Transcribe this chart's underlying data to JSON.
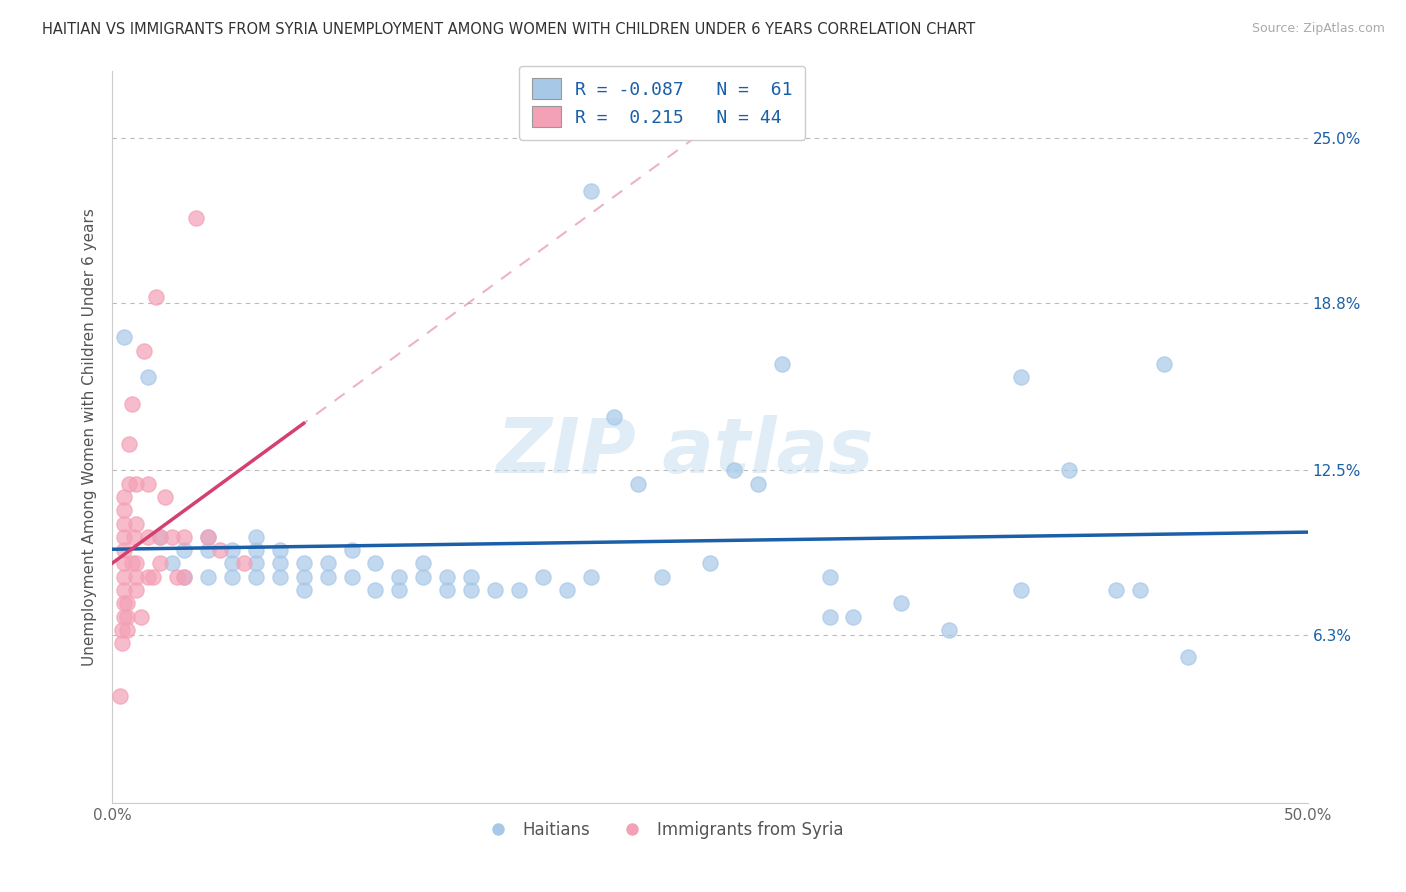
{
  "title": "HAITIAN VS IMMIGRANTS FROM SYRIA UNEMPLOYMENT AMONG WOMEN WITH CHILDREN UNDER 6 YEARS CORRELATION CHART",
  "source": "Source: ZipAtlas.com",
  "ylabel": "Unemployment Among Women with Children Under 6 years",
  "ytick_values": [
    0.063,
    0.125,
    0.188,
    0.25
  ],
  "ytick_labels": [
    "6.3%",
    "12.5%",
    "18.8%",
    "25.0%"
  ],
  "xmin": 0.0,
  "xmax": 0.5,
  "ymin": 0.0,
  "ymax": 0.275,
  "color_blue": "#a8c8e8",
  "color_pink": "#f4a0b5",
  "color_blue_line": "#1a5fa8",
  "color_pink_line": "#d44070",
  "background_color": "#ffffff",
  "blue_scatter_x": [
    0.005,
    0.015,
    0.02,
    0.025,
    0.03,
    0.03,
    0.04,
    0.04,
    0.04,
    0.05,
    0.05,
    0.05,
    0.06,
    0.06,
    0.06,
    0.06,
    0.07,
    0.07,
    0.07,
    0.08,
    0.08,
    0.08,
    0.09,
    0.09,
    0.1,
    0.1,
    0.11,
    0.11,
    0.12,
    0.12,
    0.13,
    0.13,
    0.14,
    0.14,
    0.15,
    0.15,
    0.16,
    0.17,
    0.18,
    0.19,
    0.2,
    0.21,
    0.22,
    0.23,
    0.25,
    0.26,
    0.27,
    0.28,
    0.3,
    0.31,
    0.33,
    0.35,
    0.38,
    0.4,
    0.42,
    0.43,
    0.44,
    0.45,
    0.38,
    0.3,
    0.2
  ],
  "blue_scatter_y": [
    0.175,
    0.16,
    0.1,
    0.09,
    0.085,
    0.095,
    0.085,
    0.1,
    0.095,
    0.09,
    0.085,
    0.095,
    0.085,
    0.095,
    0.09,
    0.1,
    0.09,
    0.085,
    0.095,
    0.08,
    0.09,
    0.085,
    0.085,
    0.09,
    0.085,
    0.095,
    0.08,
    0.09,
    0.08,
    0.085,
    0.085,
    0.09,
    0.08,
    0.085,
    0.085,
    0.08,
    0.08,
    0.08,
    0.085,
    0.08,
    0.085,
    0.145,
    0.12,
    0.085,
    0.09,
    0.125,
    0.12,
    0.165,
    0.085,
    0.07,
    0.075,
    0.065,
    0.08,
    0.125,
    0.08,
    0.08,
    0.165,
    0.055,
    0.16,
    0.07,
    0.23
  ],
  "pink_scatter_x": [
    0.003,
    0.004,
    0.004,
    0.005,
    0.005,
    0.005,
    0.005,
    0.005,
    0.005,
    0.005,
    0.005,
    0.005,
    0.005,
    0.006,
    0.006,
    0.006,
    0.007,
    0.007,
    0.008,
    0.008,
    0.009,
    0.01,
    0.01,
    0.01,
    0.01,
    0.01,
    0.012,
    0.013,
    0.015,
    0.015,
    0.015,
    0.017,
    0.018,
    0.02,
    0.02,
    0.022,
    0.025,
    0.027,
    0.03,
    0.03,
    0.035,
    0.04,
    0.045,
    0.055
  ],
  "pink_scatter_y": [
    0.04,
    0.06,
    0.065,
    0.07,
    0.075,
    0.08,
    0.085,
    0.09,
    0.095,
    0.1,
    0.105,
    0.11,
    0.115,
    0.065,
    0.07,
    0.075,
    0.12,
    0.135,
    0.09,
    0.15,
    0.1,
    0.08,
    0.085,
    0.09,
    0.105,
    0.12,
    0.07,
    0.17,
    0.085,
    0.1,
    0.12,
    0.085,
    0.19,
    0.09,
    0.1,
    0.115,
    0.1,
    0.085,
    0.085,
    0.1,
    0.22,
    0.1,
    0.095,
    0.09
  ]
}
